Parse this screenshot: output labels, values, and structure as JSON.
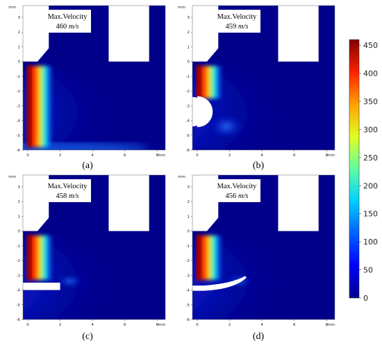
{
  "panels": [
    {
      "id": "a",
      "caption": "(a)",
      "annotation_title": "Max.Velocity",
      "annotation_value": "460",
      "annotation_unit": "m/s",
      "obstacle": "none"
    },
    {
      "id": "b",
      "caption": "(b)",
      "annotation_title": "Max.Velocity",
      "annotation_value": "459",
      "annotation_unit": "m/s",
      "obstacle": "half-circle"
    },
    {
      "id": "c",
      "caption": "(c)",
      "annotation_title": "Max.Velocity",
      "annotation_value": "458",
      "annotation_unit": "m/s",
      "obstacle": "flat-plate"
    },
    {
      "id": "d",
      "caption": "(d)",
      "annotation_title": "Max.Velocity",
      "annotation_value": "456",
      "annotation_unit": "m/s",
      "obstacle": "curved-plate"
    }
  ],
  "axis_unit_label": "mm",
  "x_ticks": [
    "0",
    "2",
    "4",
    "6",
    "8"
  ],
  "y_ticks": [
    "3",
    "2",
    "1",
    "0",
    "-1",
    "-2",
    "-3",
    "-4",
    "-5",
    "-6"
  ],
  "colorbar_ticks": [
    "450",
    "400",
    "350",
    "300",
    "250",
    "200",
    "150",
    "100",
    "50",
    "0"
  ],
  "colors": {
    "field_background": "#00008b",
    "colormap": [
      "#00008f",
      "#0000ff",
      "#0080ff",
      "#00ffff",
      "#80ff80",
      "#ffff00",
      "#ff8000",
      "#ff0000",
      "#800000"
    ]
  },
  "chart_data": {
    "type": "heatmap",
    "title": "",
    "panels": [
      "(a)",
      "(b)",
      "(c)",
      "(d)"
    ],
    "max_velocity": [
      460,
      459,
      458,
      456
    ],
    "max_velocity_unit": "m/s",
    "x_range_mm": [
      -0.3,
      8.5
    ],
    "y_range_mm": [
      -6,
      3.8
    ],
    "colorbar_range": [
      0,
      460
    ],
    "colorbar_ticks": [
      0,
      50,
      100,
      150,
      200,
      250,
      300,
      350,
      400,
      450
    ],
    "xlabel": "mm",
    "ylabel": "mm"
  }
}
